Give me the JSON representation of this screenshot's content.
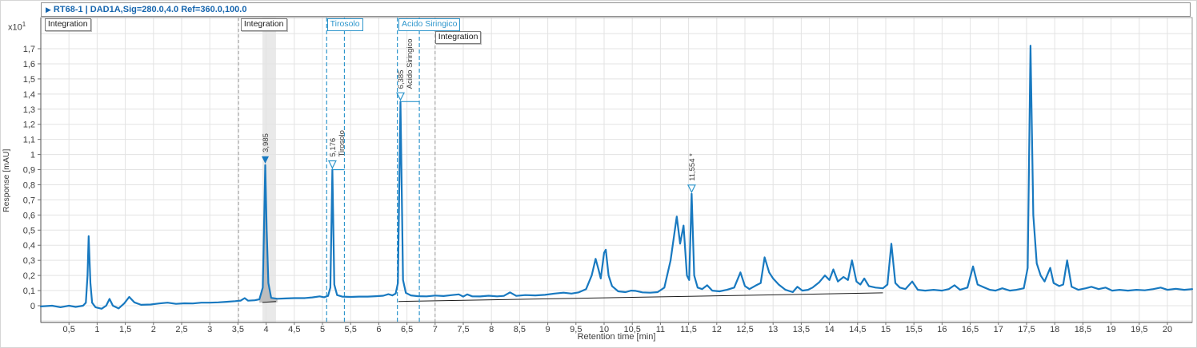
{
  "header": {
    "arrow": "▶",
    "title": "RT68-1 | DAD1A,Sig=280.0,4.0  Ref=360.0,100.0"
  },
  "y_axis": {
    "scale_prefix": "x10",
    "scale_exponent": "1",
    "title": "Response [mAU]"
  },
  "x_axis": {
    "title": "Retention time [min]"
  },
  "colors": {
    "trace": "#1879c0",
    "accent_blue": "#2e96cc",
    "header_text": "#1565ae",
    "grid": "#e3e3e3",
    "axis": "#6e6e6e",
    "frame": "#9e9e9e",
    "tick_text": "#3c3c3c",
    "annotation_text": "#3c3c3c",
    "baseline_black": "#1a1a1a",
    "band_fill": "#e9e9e9",
    "peak_fill": "#bdbdbd",
    "dashed_gray": "#9b9b9b",
    "plot_bg": "#ffffff"
  },
  "region_labels": [
    {
      "label": "Integration",
      "rt": 0.07,
      "row": 0,
      "style": "gray"
    },
    {
      "label": "Integration",
      "rt": 3.55,
      "row": 0,
      "style": "gray"
    },
    {
      "label": "Tirosolo",
      "rt": 5.08,
      "row": 0,
      "style": "blue"
    },
    {
      "label": "Acido Siringico",
      "rt": 6.35,
      "row": 0,
      "style": "blue"
    },
    {
      "label": "Integration",
      "rt": 7.0,
      "row": 1,
      "style": "gray"
    }
  ],
  "chart_data": {
    "type": "line",
    "title": "RT68-1 | DAD1A,Sig=280.0,4.0 Ref=360.0,100.0",
    "xlabel": "Retention time [min]",
    "ylabel": "Response [mAU]",
    "y_scale_note": "x10^1",
    "xlim": [
      0,
      20.45
    ],
    "ylim": [
      -0.11,
      1.905
    ],
    "grid": true,
    "x_ticks": [
      0.5,
      1,
      1.5,
      2,
      2.5,
      3,
      3.5,
      4,
      4.5,
      5,
      5.5,
      6,
      6.5,
      7,
      7.5,
      8,
      8.5,
      9,
      9.5,
      10,
      10.5,
      11,
      11.5,
      12,
      12.5,
      13,
      13.5,
      14,
      14.5,
      15,
      15.5,
      16,
      16.5,
      17,
      17.5,
      18,
      18.5,
      19,
      19.5,
      20
    ],
    "y_ticks": [
      0,
      0.1,
      0.2,
      0.3,
      0.4,
      0.5,
      0.6,
      0.7,
      0.8,
      0.9,
      1,
      1.1,
      1.2,
      1.3,
      1.4,
      1.5,
      1.6,
      1.7
    ],
    "decimal_separator": ",",
    "peaks": [
      {
        "rt": 3.985,
        "height": 0.93,
        "label": "3,985",
        "compound": null,
        "marker": "filled-triangle",
        "bracket_end": null
      },
      {
        "rt": 5.176,
        "height": 0.9,
        "label": "5,176",
        "compound": "Tirosolo",
        "marker": "open-triangle",
        "bracket_end": 5.39
      },
      {
        "rt": 6.385,
        "height": 1.35,
        "label": "6,385",
        "compound": "Acido Siringico",
        "marker": "open-triangle",
        "bracket_end": 6.72
      },
      {
        "rt": 11.554,
        "height": 0.74,
        "label": "11,554 *",
        "compound": null,
        "marker": "open-triangle",
        "bracket_end": null
      }
    ],
    "integration": {
      "gray_dashed_lines_rt": [
        3.51,
        7.0
      ],
      "blue_dashed_lines_rt": [
        5.075,
        5.39,
        6.33,
        6.72
      ],
      "selected_band_rt": [
        3.935,
        4.175
      ],
      "baseline_segments": [
        [
          [
            3.935,
            0.022
          ],
          [
            4.175,
            0.028
          ]
        ],
        [
          [
            6.35,
            0.028
          ],
          [
            14.95,
            0.085
          ]
        ]
      ]
    },
    "series": [
      {
        "name": "DAD1A,Sig=280.0,4.0 Ref=360.0,100.0",
        "points": [
          [
            0,
            -0.005
          ],
          [
            0.2,
            0
          ],
          [
            0.35,
            -0.01
          ],
          [
            0.5,
            0
          ],
          [
            0.62,
            -0.008
          ],
          [
            0.75,
            0
          ],
          [
            0.8,
            0.02
          ],
          [
            0.83,
            0.2
          ],
          [
            0.85,
            0.46
          ],
          [
            0.88,
            0.15
          ],
          [
            0.91,
            0.02
          ],
          [
            0.97,
            -0.01
          ],
          [
            1.08,
            -0.02
          ],
          [
            1.16,
            0
          ],
          [
            1.22,
            0.045
          ],
          [
            1.28,
            0
          ],
          [
            1.38,
            -0.018
          ],
          [
            1.48,
            0.015
          ],
          [
            1.57,
            0.058
          ],
          [
            1.66,
            0.022
          ],
          [
            1.78,
            0.006
          ],
          [
            1.95,
            0.008
          ],
          [
            2.1,
            0.015
          ],
          [
            2.25,
            0.02
          ],
          [
            2.4,
            0.012
          ],
          [
            2.55,
            0.016
          ],
          [
            2.7,
            0.015
          ],
          [
            2.85,
            0.02
          ],
          [
            3,
            0.02
          ],
          [
            3.15,
            0.022
          ],
          [
            3.3,
            0.026
          ],
          [
            3.45,
            0.03
          ],
          [
            3.55,
            0.034
          ],
          [
            3.62,
            0.05
          ],
          [
            3.68,
            0.033
          ],
          [
            3.8,
            0.036
          ],
          [
            3.88,
            0.042
          ],
          [
            3.94,
            0.12
          ],
          [
            3.965,
            0.55
          ],
          [
            3.985,
            0.93
          ],
          [
            4.01,
            0.5
          ],
          [
            4.04,
            0.15
          ],
          [
            4.09,
            0.052
          ],
          [
            4.2,
            0.046
          ],
          [
            4.35,
            0.048
          ],
          [
            4.5,
            0.05
          ],
          [
            4.68,
            0.05
          ],
          [
            4.82,
            0.055
          ],
          [
            4.95,
            0.062
          ],
          [
            5.03,
            0.056
          ],
          [
            5.1,
            0.065
          ],
          [
            5.14,
            0.12
          ],
          [
            5.176,
            0.9
          ],
          [
            5.21,
            0.14
          ],
          [
            5.26,
            0.07
          ],
          [
            5.35,
            0.06
          ],
          [
            5.5,
            0.058
          ],
          [
            5.65,
            0.06
          ],
          [
            5.8,
            0.06
          ],
          [
            5.95,
            0.063
          ],
          [
            6.08,
            0.066
          ],
          [
            6.17,
            0.076
          ],
          [
            6.24,
            0.068
          ],
          [
            6.3,
            0.08
          ],
          [
            6.34,
            0.15
          ],
          [
            6.385,
            1.35
          ],
          [
            6.43,
            0.17
          ],
          [
            6.48,
            0.085
          ],
          [
            6.57,
            0.068
          ],
          [
            6.7,
            0.063
          ],
          [
            6.85,
            0.062
          ],
          [
            7,
            0.067
          ],
          [
            7.15,
            0.064
          ],
          [
            7.3,
            0.07
          ],
          [
            7.42,
            0.075
          ],
          [
            7.5,
            0.06
          ],
          [
            7.57,
            0.075
          ],
          [
            7.66,
            0.062
          ],
          [
            7.8,
            0.061
          ],
          [
            7.95,
            0.066
          ],
          [
            8.1,
            0.062
          ],
          [
            8.22,
            0.065
          ],
          [
            8.33,
            0.088
          ],
          [
            8.44,
            0.065
          ],
          [
            8.6,
            0.07
          ],
          [
            8.78,
            0.068
          ],
          [
            8.95,
            0.072
          ],
          [
            9.12,
            0.08
          ],
          [
            9.28,
            0.086
          ],
          [
            9.42,
            0.08
          ],
          [
            9.55,
            0.088
          ],
          [
            9.68,
            0.11
          ],
          [
            9.78,
            0.2
          ],
          [
            9.85,
            0.31
          ],
          [
            9.9,
            0.24
          ],
          [
            9.94,
            0.18
          ],
          [
            10,
            0.35
          ],
          [
            10.03,
            0.37
          ],
          [
            10.08,
            0.2
          ],
          [
            10.14,
            0.13
          ],
          [
            10.25,
            0.095
          ],
          [
            10.38,
            0.09
          ],
          [
            10.48,
            0.1
          ],
          [
            10.56,
            0.098
          ],
          [
            10.68,
            0.088
          ],
          [
            10.82,
            0.086
          ],
          [
            10.95,
            0.09
          ],
          [
            11.07,
            0.12
          ],
          [
            11.18,
            0.3
          ],
          [
            11.29,
            0.59
          ],
          [
            11.35,
            0.41
          ],
          [
            11.41,
            0.53
          ],
          [
            11.47,
            0.2
          ],
          [
            11.51,
            0.17
          ],
          [
            11.554,
            0.74
          ],
          [
            11.6,
            0.2
          ],
          [
            11.66,
            0.12
          ],
          [
            11.74,
            0.11
          ],
          [
            11.83,
            0.135
          ],
          [
            11.92,
            0.1
          ],
          [
            12.05,
            0.095
          ],
          [
            12.18,
            0.105
          ],
          [
            12.31,
            0.12
          ],
          [
            12.42,
            0.22
          ],
          [
            12.5,
            0.13
          ],
          [
            12.58,
            0.11
          ],
          [
            12.7,
            0.135
          ],
          [
            12.78,
            0.15
          ],
          [
            12.85,
            0.32
          ],
          [
            12.93,
            0.22
          ],
          [
            13,
            0.18
          ],
          [
            13.1,
            0.14
          ],
          [
            13.22,
            0.105
          ],
          [
            13.35,
            0.09
          ],
          [
            13.43,
            0.125
          ],
          [
            13.52,
            0.1
          ],
          [
            13.62,
            0.105
          ],
          [
            13.7,
            0.12
          ],
          [
            13.82,
            0.155
          ],
          [
            13.92,
            0.2
          ],
          [
            14,
            0.17
          ],
          [
            14.07,
            0.24
          ],
          [
            14.15,
            0.16
          ],
          [
            14.25,
            0.19
          ],
          [
            14.33,
            0.17
          ],
          [
            14.4,
            0.3
          ],
          [
            14.48,
            0.16
          ],
          [
            14.55,
            0.14
          ],
          [
            14.62,
            0.18
          ],
          [
            14.7,
            0.13
          ],
          [
            14.82,
            0.12
          ],
          [
            14.95,
            0.115
          ],
          [
            15.03,
            0.14
          ],
          [
            15.1,
            0.41
          ],
          [
            15.17,
            0.15
          ],
          [
            15.25,
            0.12
          ],
          [
            15.35,
            0.11
          ],
          [
            15.47,
            0.16
          ],
          [
            15.57,
            0.105
          ],
          [
            15.7,
            0.1
          ],
          [
            15.85,
            0.105
          ],
          [
            16,
            0.1
          ],
          [
            16.12,
            0.11
          ],
          [
            16.22,
            0.135
          ],
          [
            16.32,
            0.105
          ],
          [
            16.45,
            0.12
          ],
          [
            16.55,
            0.26
          ],
          [
            16.63,
            0.14
          ],
          [
            16.72,
            0.125
          ],
          [
            16.85,
            0.105
          ],
          [
            16.95,
            0.1
          ],
          [
            17.07,
            0.115
          ],
          [
            17.2,
            0.1
          ],
          [
            17.32,
            0.105
          ],
          [
            17.45,
            0.115
          ],
          [
            17.52,
            0.25
          ],
          [
            17.57,
            1.72
          ],
          [
            17.62,
            0.6
          ],
          [
            17.68,
            0.28
          ],
          [
            17.75,
            0.2
          ],
          [
            17.82,
            0.16
          ],
          [
            17.92,
            0.25
          ],
          [
            17.98,
            0.15
          ],
          [
            18.08,
            0.13
          ],
          [
            18.15,
            0.14
          ],
          [
            18.22,
            0.3
          ],
          [
            18.3,
            0.125
          ],
          [
            18.42,
            0.105
          ],
          [
            18.55,
            0.115
          ],
          [
            18.65,
            0.125
          ],
          [
            18.78,
            0.11
          ],
          [
            18.9,
            0.12
          ],
          [
            19.02,
            0.1
          ],
          [
            19.15,
            0.105
          ],
          [
            19.3,
            0.1
          ],
          [
            19.45,
            0.105
          ],
          [
            19.6,
            0.102
          ],
          [
            19.75,
            0.11
          ],
          [
            19.88,
            0.12
          ],
          [
            20,
            0.105
          ],
          [
            20.15,
            0.112
          ],
          [
            20.3,
            0.105
          ],
          [
            20.44,
            0.11
          ]
        ]
      }
    ]
  }
}
